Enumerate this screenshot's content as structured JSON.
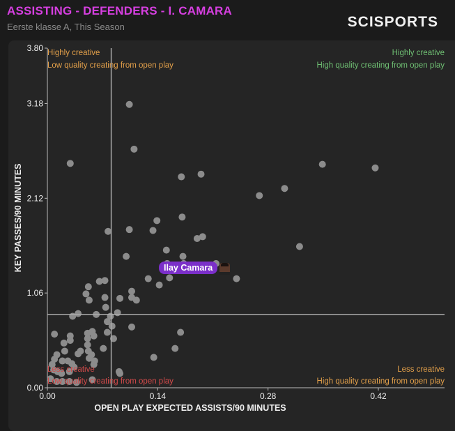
{
  "header": {
    "title": "ASSISTING - DEFENDERS - I. CAMARA",
    "subtitle": "Eerste klasse A, This Season",
    "logo": "SCISPORTS"
  },
  "quadrants": {
    "top_left": [
      "Highly creative",
      "Low quality creating from open play"
    ],
    "top_right": [
      "Highly creative",
      "High quality creating from open play"
    ],
    "bottom_left": [
      "Less creative",
      "Low quality creating from open play"
    ],
    "bottom_right": [
      "Less creative",
      "High quality creating from open play"
    ]
  },
  "colors": {
    "title": "#d63fe0",
    "highlight": "#7b2fc9",
    "point": "#8c8c8c",
    "orange": "#e3a04a",
    "green": "#6fbf73",
    "red": "#d24a4a"
  },
  "chart_data": {
    "type": "scatter",
    "xlabel": "OPEN PLAY EXPECTED ASSISTS/90 MINUTES",
    "ylabel": "KEY PASSES/90 MINUTES",
    "xlim": [
      0,
      0.504
    ],
    "ylim": [
      0,
      3.8
    ],
    "xticks": [
      "0.00",
      "0.14",
      "0.28",
      "0.42"
    ],
    "xtick_values": [
      0,
      0.14,
      0.28,
      0.42
    ],
    "yticks": [
      "0.00",
      "1.06",
      "2.12",
      "3.18",
      "3.80"
    ],
    "ytick_values": [
      0,
      1.06,
      2.12,
      3.18,
      3.8
    ],
    "mean_x": 0.081,
    "mean_y": 0.82,
    "highlight": {
      "name": "Ilay Camara",
      "x": 0.225,
      "y": 1.33
    },
    "points": [
      [
        0.104,
        3.17
      ],
      [
        0.11,
        2.67
      ],
      [
        0.029,
        2.51
      ],
      [
        0.349,
        2.5
      ],
      [
        0.416,
        2.46
      ],
      [
        0.195,
        2.39
      ],
      [
        0.17,
        2.36
      ],
      [
        0.301,
        2.23
      ],
      [
        0.269,
        2.15
      ],
      [
        0.139,
        1.87
      ],
      [
        0.171,
        1.91
      ],
      [
        0.077,
        1.75
      ],
      [
        0.104,
        1.77
      ],
      [
        0.134,
        1.76
      ],
      [
        0.197,
        1.69
      ],
      [
        0.19,
        1.67
      ],
      [
        0.32,
        1.58
      ],
      [
        0.151,
        1.54
      ],
      [
        0.1,
        1.47
      ],
      [
        0.172,
        1.47
      ],
      [
        0.152,
        1.39
      ],
      [
        0.173,
        1.39
      ],
      [
        0.214,
        1.39
      ],
      [
        0.073,
        1.2
      ],
      [
        0.066,
        1.19
      ],
      [
        0.052,
        1.13
      ],
      [
        0.049,
        1.05
      ],
      [
        0.053,
        0.98
      ],
      [
        0.073,
        1.01
      ],
      [
        0.092,
        1.0
      ],
      [
        0.107,
        1.08
      ],
      [
        0.107,
        1.01
      ],
      [
        0.113,
        0.98
      ],
      [
        0.074,
        0.9
      ],
      [
        0.039,
        0.83
      ],
      [
        0.032,
        0.8
      ],
      [
        0.062,
        0.82
      ],
      [
        0.089,
        0.84
      ],
      [
        0.08,
        0.8
      ],
      [
        0.076,
        0.74
      ],
      [
        0.082,
        0.69
      ],
      [
        0.107,
        0.68
      ],
      [
        0.076,
        0.62
      ],
      [
        0.084,
        0.55
      ],
      [
        0.009,
        0.6
      ],
      [
        0.029,
        0.58
      ],
      [
        0.029,
        0.53
      ],
      [
        0.051,
        0.61
      ],
      [
        0.057,
        0.63
      ],
      [
        0.059,
        0.58
      ],
      [
        0.051,
        0.55
      ],
      [
        0.021,
        0.5
      ],
      [
        0.051,
        0.48
      ],
      [
        0.071,
        0.44
      ],
      [
        0.022,
        0.41
      ],
      [
        0.039,
        0.38
      ],
      [
        0.042,
        0.41
      ],
      [
        0.052,
        0.41
      ],
      [
        0.056,
        0.37
      ],
      [
        0.053,
        0.33
      ],
      [
        0.06,
        0.3
      ],
      [
        0.059,
        0.26
      ],
      [
        0.012,
        0.37
      ],
      [
        0.009,
        0.32
      ],
      [
        0.019,
        0.3
      ],
      [
        0.026,
        0.3
      ],
      [
        0.031,
        0.27
      ],
      [
        0.034,
        0.23
      ],
      [
        0.006,
        0.26
      ],
      [
        0.008,
        0.2
      ],
      [
        0.013,
        0.18
      ],
      [
        0.028,
        0.18
      ],
      [
        0.018,
        0.16
      ],
      [
        0.004,
        0.1
      ],
      [
        0.012,
        0.07
      ],
      [
        0.019,
        0.07
      ],
      [
        0.028,
        0.07
      ],
      [
        0.037,
        0.06
      ],
      [
        0.057,
        0.09
      ],
      [
        0.091,
        0.18
      ],
      [
        0.092,
        0.16
      ],
      [
        0.135,
        0.34
      ],
      [
        0.162,
        0.44
      ],
      [
        0.169,
        0.62
      ],
      [
        0.128,
        1.22
      ],
      [
        0.142,
        1.15
      ],
      [
        0.155,
        1.23
      ],
      [
        0.24,
        1.22
      ]
    ]
  }
}
